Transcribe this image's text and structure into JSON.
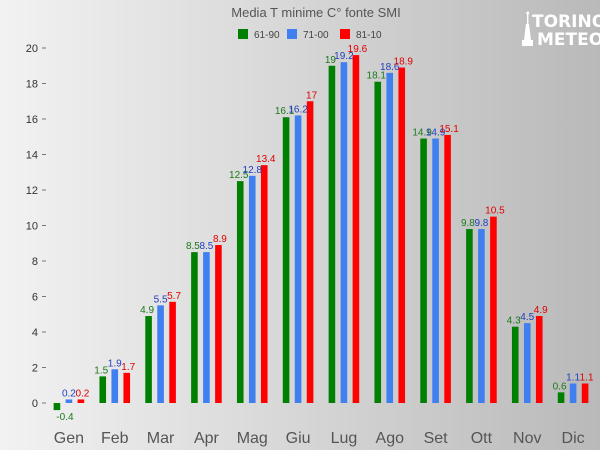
{
  "chart_data": {
    "type": "bar",
    "title": "Media  T minime C°  fonte SMI",
    "xlabel": "",
    "ylabel": "",
    "ylim": [
      -0.7,
      20
    ],
    "yticks": [
      0,
      2,
      4,
      6,
      8,
      10,
      12,
      14,
      16,
      18,
      20
    ],
    "grid": false,
    "legend_position": "top-center",
    "categories": [
      "Gen",
      "Feb",
      "Mar",
      "Apr",
      "Mag",
      "Giu",
      "Lug",
      "Ago",
      "Set",
      "Ott",
      "Nov",
      "Dic"
    ],
    "series": [
      {
        "name": "61-90",
        "color": "#008000",
        "label_color": "#1a7a1a",
        "values": [
          -0.4,
          1.5,
          4.9,
          8.5,
          12.5,
          16.1,
          19,
          18.1,
          14.9,
          9.8,
          4.3,
          0.6
        ]
      },
      {
        "name": "71-00",
        "color": "#3f7fef",
        "label_color": "#1f3fbf",
        "values": [
          0.2,
          1.9,
          5.5,
          8.5,
          12.8,
          16.2,
          19.2,
          18.6,
          14.9,
          9.8,
          4.5,
          1.1
        ]
      },
      {
        "name": "81-10",
        "color": "#ff0000",
        "label_color": "#e00000",
        "values": [
          0.2,
          1.7,
          5.7,
          8.9,
          13.4,
          17,
          19.6,
          18.9,
          15.1,
          10.5,
          4.9,
          1.1
        ]
      }
    ]
  },
  "logo": {
    "line1": "TORINO",
    "line2": "METEO",
    "color": "#ffffff",
    "icon": "mole-antonelliana-icon"
  }
}
